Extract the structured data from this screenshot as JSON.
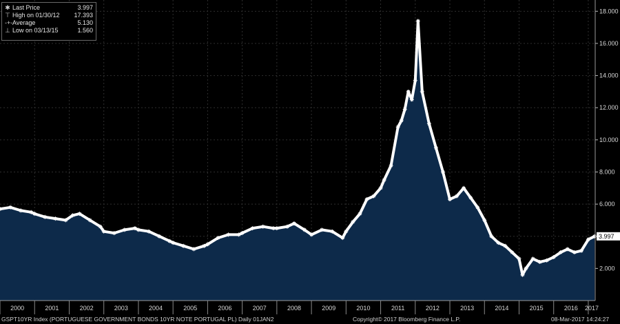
{
  "legend": {
    "last_price_label": "Last Price",
    "last_price_value": "3.997",
    "high_label": "High on 01/30/12",
    "high_value": "17.393",
    "average_label": "Average",
    "average_value": "5.130",
    "low_label": "Low on 03/13/15",
    "low_value": "1.560"
  },
  "footer": {
    "left": "GSPT10YR Index (PORTUGUESE GOVERNMENT BONDS 10YR NOTE PORTUGAL PL)  Daily 01JAN2",
    "center": "Copyright© 2017 Bloomberg Finance L.P.",
    "right": "08-Mar-2017 14:24:27"
  },
  "colors": {
    "background": "#000000",
    "area_fill": "#0d2a4a",
    "line": "#ffffff",
    "grid": "#2f2f2f"
  },
  "chart_data": {
    "type": "area",
    "title": "",
    "xlabel": "",
    "ylabel": "",
    "x_tick_labels": [
      "2000",
      "2001",
      "2002",
      "2003",
      "2004",
      "2005",
      "2006",
      "2007",
      "2008",
      "2009",
      "2010",
      "2011",
      "2012",
      "2013",
      "2014",
      "2015",
      "2016",
      "2017"
    ],
    "y_ticks": [
      2.0,
      4.0,
      6.0,
      8.0,
      10.0,
      12.0,
      14.0,
      16.0,
      18.0
    ],
    "y_tick_labels": [
      "2.000",
      "4.000",
      "6.000",
      "8.000",
      "10.000",
      "12.000",
      "14.000",
      "16.000",
      "18.000"
    ],
    "ylim": [
      0.0,
      18.7
    ],
    "xlim": [
      2000.0,
      2017.2
    ],
    "y_axis_side": "right",
    "grid": true,
    "legend_position": "top-left",
    "last_value_label": "3.997",
    "series": [
      {
        "x": [
          2000.0,
          2000.3,
          2000.6,
          2000.9,
          2001.0,
          2001.3,
          2001.6,
          2001.9,
          2002.1,
          2002.3,
          2002.6,
          2002.9,
          2003.0,
          2003.3,
          2003.6,
          2003.9,
          2004.0,
          2004.3,
          2004.6,
          2004.9,
          2005.0,
          2005.3,
          2005.6,
          2005.9,
          2006.0,
          2006.3,
          2006.6,
          2006.9,
          2007.0,
          2007.3,
          2007.6,
          2007.9,
          2008.0,
          2008.3,
          2008.5,
          2008.8,
          2009.0,
          2009.3,
          2009.6,
          2009.9,
          2010.0,
          2010.2,
          2010.4,
          2010.6,
          2010.8,
          2011.0,
          2011.1,
          2011.3,
          2011.5,
          2011.6,
          2011.7,
          2011.8,
          2011.9,
          2012.0,
          2012.08,
          2012.2,
          2012.4,
          2012.6,
          2012.8,
          2013.0,
          2013.2,
          2013.4,
          2013.6,
          2013.8,
          2014.0,
          2014.2,
          2014.4,
          2014.6,
          2014.8,
          2015.0,
          2015.1,
          2015.2,
          2015.4,
          2015.6,
          2015.8,
          2016.0,
          2016.2,
          2016.4,
          2016.6,
          2016.8,
          2017.0,
          2017.18
        ],
        "y": [
          5.7,
          5.8,
          5.6,
          5.5,
          5.4,
          5.2,
          5.1,
          5.0,
          5.3,
          5.4,
          5.0,
          4.6,
          4.3,
          4.2,
          4.4,
          4.5,
          4.4,
          4.3,
          4.0,
          3.7,
          3.6,
          3.4,
          3.2,
          3.4,
          3.5,
          3.9,
          4.1,
          4.1,
          4.2,
          4.5,
          4.6,
          4.5,
          4.5,
          4.6,
          4.8,
          4.4,
          4.1,
          4.4,
          4.3,
          3.9,
          4.3,
          4.9,
          5.4,
          6.3,
          6.5,
          7.0,
          7.5,
          8.4,
          10.8,
          11.2,
          11.9,
          13.0,
          12.5,
          13.7,
          17.393,
          13.0,
          11.0,
          9.5,
          8.0,
          6.3,
          6.5,
          7.0,
          6.4,
          5.8,
          5.0,
          4.0,
          3.6,
          3.4,
          3.0,
          2.6,
          1.6,
          2.0,
          2.6,
          2.4,
          2.5,
          2.7,
          3.0,
          3.2,
          3.0,
          3.1,
          3.8,
          3.997
        ]
      }
    ]
  }
}
